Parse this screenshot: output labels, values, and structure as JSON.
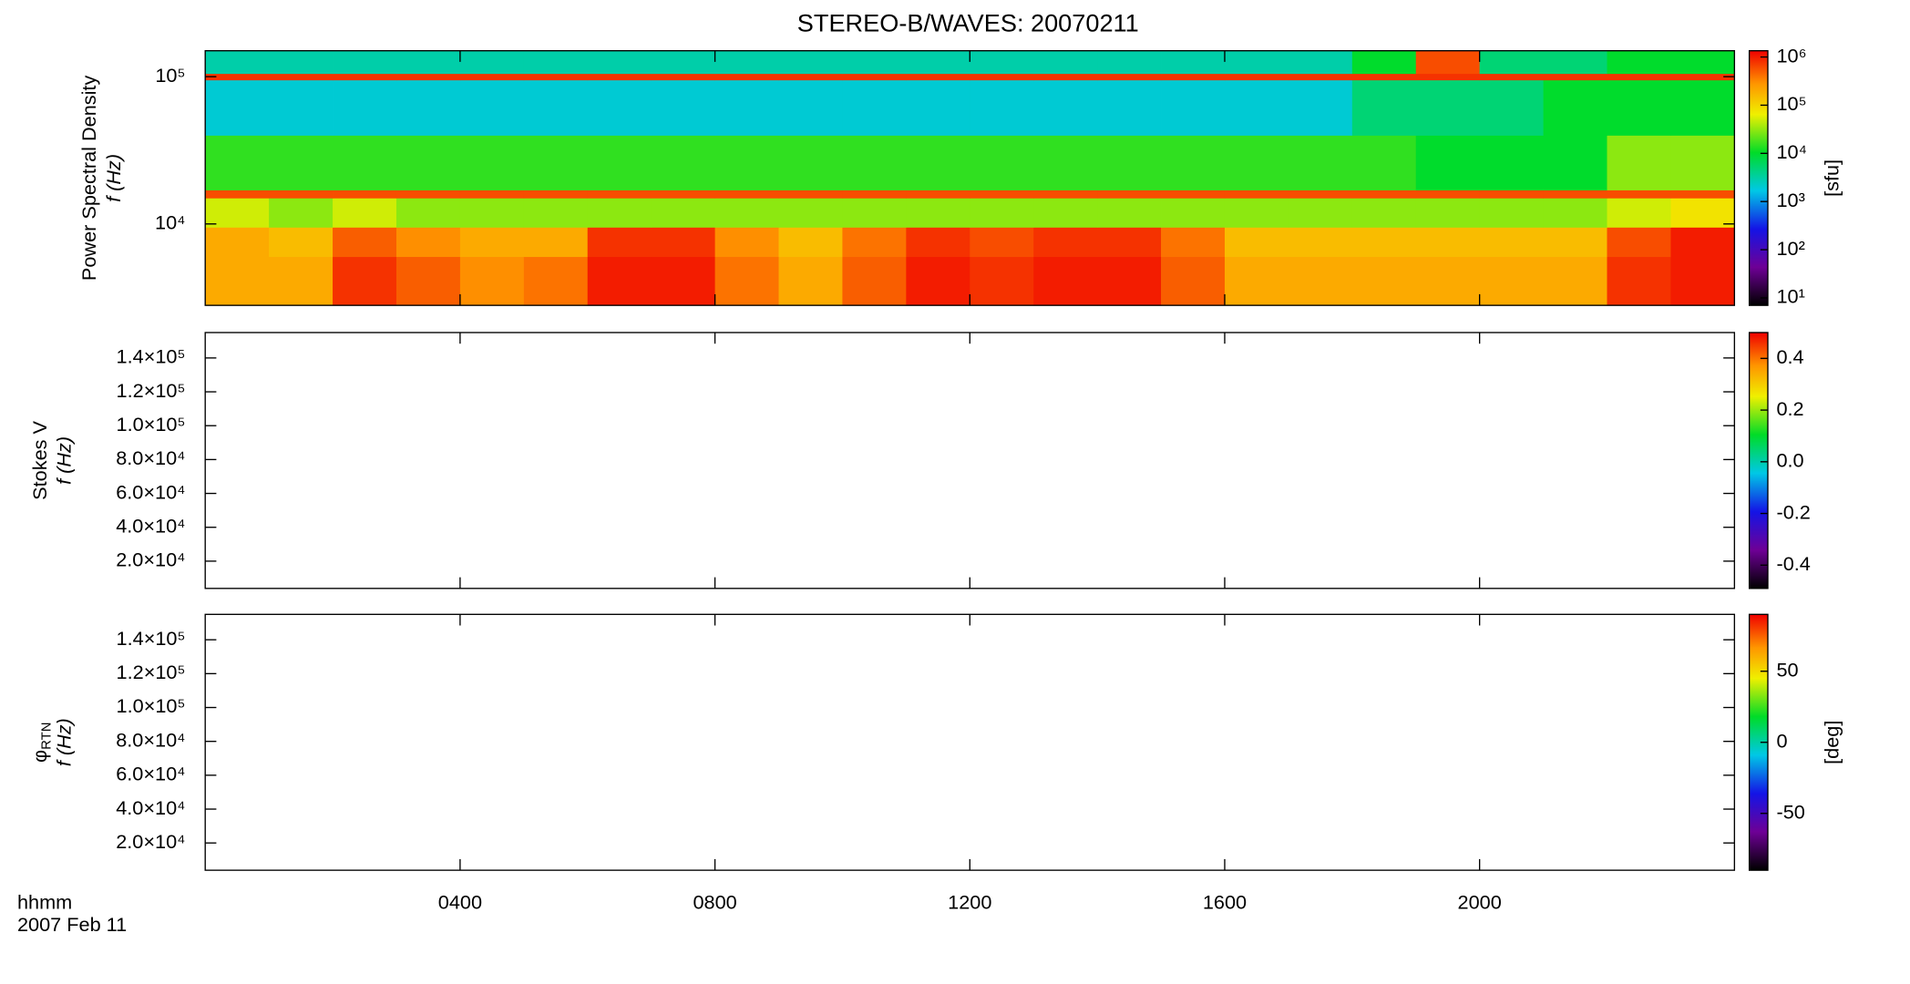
{
  "title": "STEREO-B/WAVES: 20070211",
  "x_axis": {
    "label": "hhmm",
    "date": "2007 Feb 11",
    "xlim": [
      0,
      24
    ],
    "xticks": [
      {
        "value": 4,
        "label": "0400"
      },
      {
        "value": 8,
        "label": "0800"
      },
      {
        "value": 12,
        "label": "1200"
      },
      {
        "value": 16,
        "label": "1600"
      },
      {
        "value": 20,
        "label": "2000"
      }
    ]
  },
  "chart_data": [
    {
      "type": "heatmap",
      "ylabel": "Power Spectral Density",
      "ylabel2": "f (Hz)",
      "ylog": true,
      "ylim": [
        2800,
        150000
      ],
      "yticks": [
        {
          "value": 10000,
          "label": "10⁴"
        },
        {
          "value": 100000,
          "label": "10⁵"
        }
      ],
      "x_bins": [
        0,
        1,
        2,
        3,
        4,
        5,
        6,
        7,
        8,
        9,
        10,
        11,
        12,
        13,
        14,
        15,
        16,
        17,
        18,
        19,
        20,
        21,
        22,
        23,
        24
      ],
      "y_bins": [
        2800,
        6000,
        9500,
        15000,
        17000,
        40000,
        95000,
        105000,
        150000
      ],
      "z": [
        [
          200000,
          200000,
          800000,
          500000,
          300000,
          400000,
          1000000,
          1000000,
          400000,
          200000,
          500000,
          1000000,
          800000,
          1000000,
          1000000,
          500000,
          200000,
          200000,
          200000,
          200000,
          200000,
          200000,
          800000,
          1000000
        ],
        [
          200000,
          150000,
          500000,
          300000,
          200000,
          200000,
          800000,
          800000,
          300000,
          150000,
          400000,
          800000,
          600000,
          800000,
          800000,
          400000,
          150000,
          150000,
          150000,
          150000,
          150000,
          150000,
          600000,
          1000000
        ],
        [
          50000,
          30000,
          50000,
          30000,
          30000,
          30000,
          30000,
          30000,
          30000,
          30000,
          30000,
          30000,
          30000,
          30000,
          30000,
          30000,
          30000,
          30000,
          30000,
          30000,
          30000,
          30000,
          50000,
          80000
        ],
        [
          600000,
          600000,
          600000,
          600000,
          600000,
          600000,
          600000,
          600000,
          600000,
          600000,
          600000,
          600000,
          600000,
          600000,
          600000,
          600000,
          600000,
          600000,
          600000,
          600000,
          600000,
          600000,
          600000,
          600000
        ],
        [
          15000,
          15000,
          15000,
          15000,
          15000,
          15000,
          15000,
          15000,
          15000,
          15000,
          15000,
          15000,
          15000,
          15000,
          15000,
          15000,
          15000,
          15000,
          15000,
          10000,
          10000,
          10000,
          30000,
          30000
        ],
        [
          2000,
          2000,
          2000,
          2000,
          2000,
          2000,
          2000,
          2000,
          2000,
          2000,
          2000,
          2000,
          2000,
          2000,
          2000,
          2000,
          2000,
          2000,
          5000,
          5000,
          5000,
          10000,
          10000,
          10000
        ],
        [
          800000,
          800000,
          800000,
          800000,
          800000,
          800000,
          800000,
          800000,
          800000,
          800000,
          800000,
          800000,
          800000,
          800000,
          800000,
          800000,
          800000,
          800000,
          800000,
          800000,
          800000,
          800000,
          800000,
          800000
        ],
        [
          3000,
          3000,
          3000,
          3000,
          3000,
          3000,
          3000,
          3000,
          3000,
          3000,
          3000,
          3000,
          3000,
          3000,
          3000,
          3000,
          3000,
          3000,
          10000,
          600000,
          5000,
          5000,
          10000,
          10000
        ]
      ],
      "zlog": true,
      "zlim": [
        7,
        1350000
      ],
      "zticks": [
        {
          "value": 10,
          "label": "10¹"
        },
        {
          "value": 100,
          "label": "10²"
        },
        {
          "value": 1000,
          "label": "10³"
        },
        {
          "value": 10000,
          "label": "10⁴"
        },
        {
          "value": 100000,
          "label": "10⁵"
        },
        {
          "value": 1000000,
          "label": "10⁶"
        }
      ],
      "zlabel": "[sfu]",
      "colormap": "rainbow"
    },
    {
      "type": "heatmap",
      "ylabel": "Stokes V",
      "ylabel2": "f (Hz)",
      "ylog": false,
      "ylim": [
        3900,
        155000
      ],
      "yticks": [
        {
          "value": 20000,
          "label": "2.0×10⁴"
        },
        {
          "value": 40000,
          "label": "4.0×10⁴"
        },
        {
          "value": 60000,
          "label": "6.0×10⁴"
        },
        {
          "value": 80000,
          "label": "8.0×10⁴"
        },
        {
          "value": 100000,
          "label": "1.0×10⁵"
        },
        {
          "value": 120000,
          "label": "1.2×10⁵"
        },
        {
          "value": 140000,
          "label": "1.4×10⁵"
        }
      ],
      "zlog": false,
      "zlim": [
        -0.49,
        0.5
      ],
      "zticks": [
        -0.4,
        -0.2,
        {
          "value": 0,
          "label": "0.0"
        },
        0.2,
        0.4
      ],
      "colormap": "rainbow"
    },
    {
      "type": "heatmap",
      "ylabel": "φ",
      "ylabel_subscript": "RTN",
      "ylabel2": "f (Hz)",
      "ylog": false,
      "ylim": [
        3900,
        155000
      ],
      "yticks": [
        {
          "value": 20000,
          "label": "2.0×10⁴"
        },
        {
          "value": 40000,
          "label": "4.0×10⁴"
        },
        {
          "value": 60000,
          "label": "6.0×10⁴"
        },
        {
          "value": 80000,
          "label": "8.0×10⁴"
        },
        {
          "value": 100000,
          "label": "1.0×10⁵"
        },
        {
          "value": 120000,
          "label": "1.2×10⁵"
        },
        {
          "value": 140000,
          "label": "1.4×10⁵"
        }
      ],
      "zlog": false,
      "zlim": [
        -90,
        90
      ],
      "zticks": [
        -50,
        0,
        50
      ],
      "zlabel": "[deg]",
      "colormap": "rainbow"
    }
  ]
}
